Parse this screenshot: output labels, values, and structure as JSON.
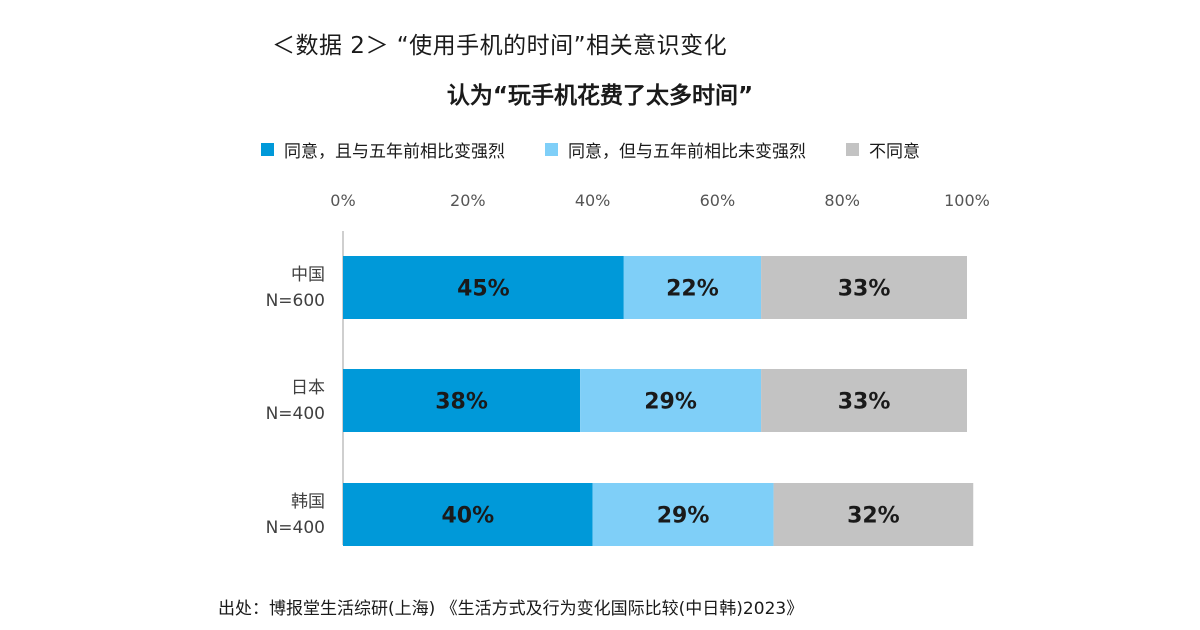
{
  "heading": "＜数据 2＞ “使用手机的时间”相关意识变化",
  "source": "出处：博报堂生活综研(上海) 《生活方式及行为变化国际比较(中日韩)2023》",
  "chart_data": {
    "type": "bar",
    "orientation": "horizontal",
    "stacked": true,
    "title": "认为“玩手机花费了太多时间”",
    "categories": [
      {
        "name": "中国",
        "n": "N=600"
      },
      {
        "name": "日本",
        "n": "N=400"
      },
      {
        "name": "韩国",
        "n": "N=400"
      }
    ],
    "series": [
      {
        "name": "同意，且与五年前相比变强烈",
        "color": "#0099d9",
        "values": [
          45,
          38,
          40
        ]
      },
      {
        "name": "同意，但与五年前相比未变强烈",
        "color": "#7fcff8",
        "values": [
          22,
          29,
          29
        ]
      },
      {
        "name": "不同意",
        "color": "#c3c3c3",
        "values": [
          33,
          33,
          32
        ]
      }
    ],
    "xlim": [
      0,
      100
    ],
    "x_ticks": [
      "0%",
      "20%",
      "40%",
      "60%",
      "80%",
      "100%"
    ],
    "value_format": "percent",
    "legend_position": "top",
    "grid": false
  }
}
